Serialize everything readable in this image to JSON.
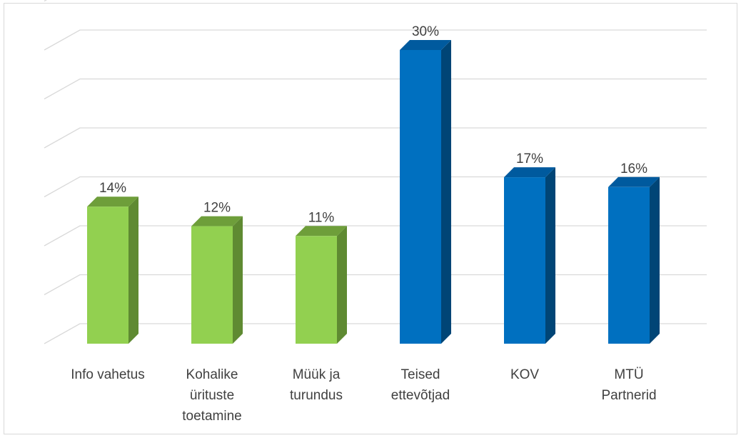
{
  "chart_data": {
    "type": "bar",
    "style": "3d-column",
    "categories": [
      "Info vahetus",
      "Kohalike ürituste toetamine",
      "Müük ja turundus",
      "Teised ettevõtjad",
      "KOV",
      "MTÜ Partnerid"
    ],
    "category_lines": [
      [
        "Info vahetus"
      ],
      [
        "Kohalike",
        "ürituste",
        "toetamine"
      ],
      [
        "Müük ja",
        "turundus"
      ],
      [
        "Teised",
        "ettevõtjad"
      ],
      [
        "KOV"
      ],
      [
        "MTÜ",
        "Partnerid"
      ]
    ],
    "values": [
      14,
      12,
      11,
      30,
      17,
      16
    ],
    "data_labels": [
      "14%",
      "12%",
      "11%",
      "30%",
      "17%",
      "16%"
    ],
    "value_unit": "%",
    "ylim": [
      0,
      35
    ],
    "y_gridline_step": 5,
    "y_tick_labels_shown": false,
    "grid": true,
    "legend": "none",
    "colors": {
      "green_front": "#92d050",
      "green_side": "#5f8a32",
      "green_top": "#6e9e3a",
      "blue_front": "#0070c0",
      "blue_side": "#004576",
      "blue_top": "#005a9e",
      "gridline": "#d9d9d9",
      "text": "#404040"
    },
    "bar_color_groups": [
      "green",
      "green",
      "green",
      "blue",
      "blue",
      "blue"
    ]
  }
}
